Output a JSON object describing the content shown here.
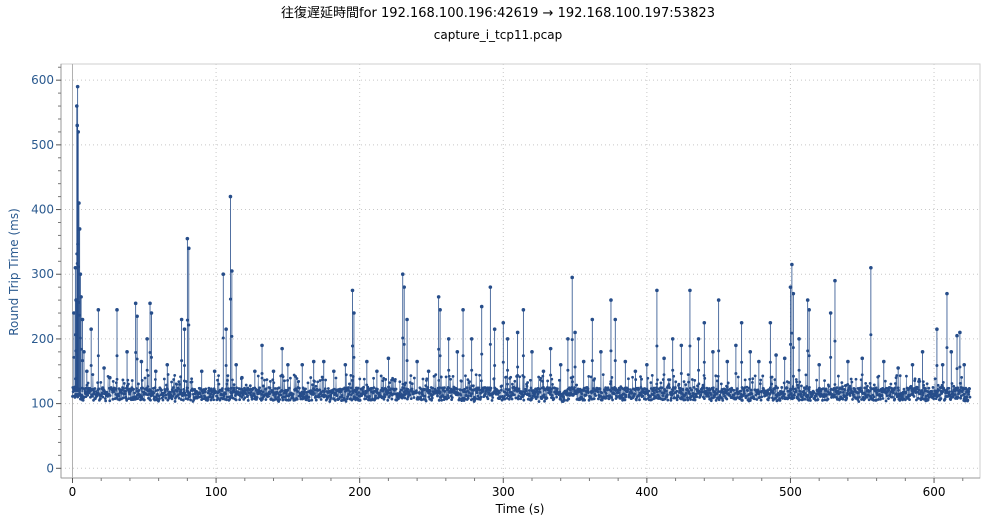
{
  "chart_data": {
    "type": "scatter",
    "title": "往復遅延時間for 192.168.100.196:42619 → 192.168.100.197:53823",
    "subtitle": "capture_i_tcp11.pcap",
    "xlabel": "Time (s)",
    "ylabel": "Round Trip Time (ms)",
    "xlim": [
      -8,
      632
    ],
    "ylim": [
      -15,
      625
    ],
    "xticks": [
      0,
      100,
      200,
      300,
      400,
      500,
      600
    ],
    "yticks": [
      0,
      100,
      200,
      300,
      400,
      500,
      600
    ],
    "grid": true,
    "baseline_band": [
      103,
      145
    ],
    "x_range": [
      0,
      625
    ],
    "series": [
      {
        "color": "#264d8a",
        "spikes": [
          [
            1,
            240
          ],
          [
            1.5,
            125
          ],
          [
            2,
            310
          ],
          [
            2.5,
            260
          ],
          [
            3,
            560
          ],
          [
            3.3,
            530
          ],
          [
            3.6,
            590
          ],
          [
            4,
            520
          ],
          [
            4.5,
            410
          ],
          [
            5,
            370
          ],
          [
            5.5,
            300
          ],
          [
            6,
            265
          ],
          [
            7,
            230
          ],
          [
            8,
            180
          ],
          [
            10,
            150
          ],
          [
            13,
            215
          ],
          [
            18,
            245
          ],
          [
            22,
            155
          ],
          [
            26,
            140
          ],
          [
            31,
            245
          ],
          [
            38,
            180
          ],
          [
            44,
            255
          ],
          [
            45,
            235
          ],
          [
            48,
            165
          ],
          [
            52,
            200
          ],
          [
            54,
            255
          ],
          [
            55,
            240
          ],
          [
            58,
            150
          ],
          [
            66,
            160
          ],
          [
            76,
            230
          ],
          [
            78,
            215
          ],
          [
            80,
            355
          ],
          [
            81,
            340
          ],
          [
            90,
            150
          ],
          [
            99,
            150
          ],
          [
            105,
            300
          ],
          [
            107,
            215
          ],
          [
            110,
            420
          ],
          [
            111,
            305
          ],
          [
            114,
            160
          ],
          [
            118,
            140
          ],
          [
            127,
            150
          ],
          [
            132,
            190
          ],
          [
            140,
            150
          ],
          [
            146,
            185
          ],
          [
            150,
            160
          ],
          [
            160,
            160
          ],
          [
            168,
            165
          ],
          [
            175,
            165
          ],
          [
            182,
            150
          ],
          [
            190,
            160
          ],
          [
            195,
            275
          ],
          [
            196,
            240
          ],
          [
            205,
            165
          ],
          [
            212,
            150
          ],
          [
            220,
            170
          ],
          [
            230,
            300
          ],
          [
            231,
            280
          ],
          [
            233,
            230
          ],
          [
            240,
            165
          ],
          [
            248,
            150
          ],
          [
            255,
            265
          ],
          [
            256,
            245
          ],
          [
            262,
            200
          ],
          [
            268,
            180
          ],
          [
            272,
            245
          ],
          [
            278,
            200
          ],
          [
            285,
            250
          ],
          [
            291,
            280
          ],
          [
            294,
            215
          ],
          [
            300,
            225
          ],
          [
            303,
            200
          ],
          [
            310,
            210
          ],
          [
            314,
            245
          ],
          [
            320,
            180
          ],
          [
            328,
            150
          ],
          [
            333,
            185
          ],
          [
            340,
            160
          ],
          [
            345,
            200
          ],
          [
            348,
            295
          ],
          [
            350,
            210
          ],
          [
            356,
            165
          ],
          [
            362,
            230
          ],
          [
            368,
            180
          ],
          [
            375,
            260
          ],
          [
            378,
            230
          ],
          [
            385,
            165
          ],
          [
            392,
            150
          ],
          [
            400,
            160
          ],
          [
            407,
            275
          ],
          [
            412,
            170
          ],
          [
            418,
            200
          ],
          [
            424,
            190
          ],
          [
            430,
            275
          ],
          [
            436,
            200
          ],
          [
            440,
            225
          ],
          [
            446,
            180
          ],
          [
            450,
            260
          ],
          [
            456,
            165
          ],
          [
            462,
            190
          ],
          [
            466,
            225
          ],
          [
            472,
            180
          ],
          [
            478,
            165
          ],
          [
            486,
            225
          ],
          [
            490,
            175
          ],
          [
            496,
            170
          ],
          [
            500,
            280
          ],
          [
            501,
            315
          ],
          [
            502,
            270
          ],
          [
            506,
            200
          ],
          [
            512,
            260
          ],
          [
            513,
            245
          ],
          [
            520,
            160
          ],
          [
            528,
            240
          ],
          [
            531,
            290
          ],
          [
            540,
            165
          ],
          [
            550,
            170
          ],
          [
            556,
            310
          ],
          [
            565,
            165
          ],
          [
            575,
            155
          ],
          [
            585,
            160
          ],
          [
            592,
            180
          ],
          [
            602,
            215
          ],
          [
            606,
            160
          ],
          [
            609,
            270
          ],
          [
            612,
            180
          ],
          [
            616,
            205
          ],
          [
            618,
            210
          ],
          [
            621,
            160
          ]
        ]
      }
    ]
  }
}
